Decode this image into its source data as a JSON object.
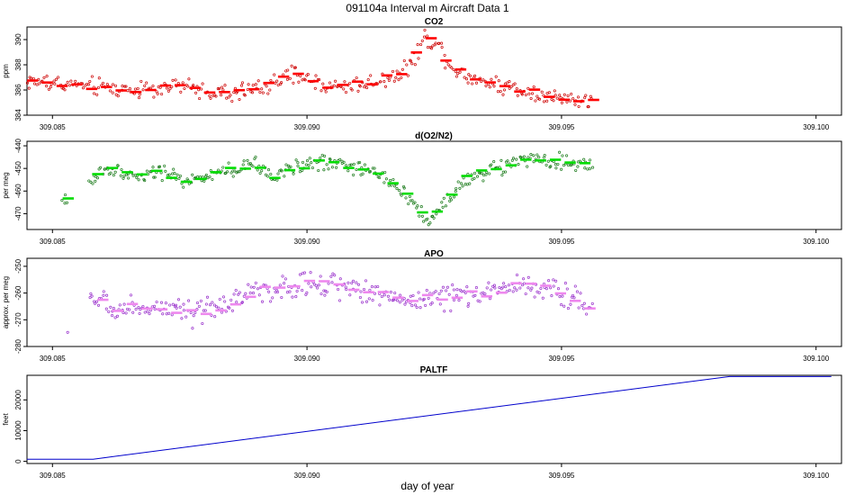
{
  "figure": {
    "title": "091104a   Interval m Aircraft Data 1",
    "xlabel": "day of year"
  },
  "chart_data": [
    {
      "type": "scatter",
      "title": "CO2",
      "ylabel": "ppm",
      "xlim": [
        309.0845,
        309.1005
      ],
      "ylim": [
        384,
        391
      ],
      "x_ticks": [
        "309.085",
        "309.090",
        "309.095",
        "309.100"
      ],
      "y_ticks": [
        "384",
        "386",
        "388",
        "390"
      ],
      "colors": {
        "points": "#cc0000",
        "means": "#ff0000"
      },
      "anchors": [
        [
          309.0845,
          386.7
        ],
        [
          309.0855,
          386.4
        ],
        [
          309.0865,
          386.0
        ],
        [
          309.0875,
          386.3
        ],
        [
          309.0885,
          385.6
        ],
        [
          309.0893,
          386.5
        ],
        [
          309.0898,
          387.2
        ],
        [
          309.0905,
          386.2
        ],
        [
          309.0913,
          386.6
        ],
        [
          309.0918,
          387.3
        ],
        [
          309.0921,
          388.3
        ],
        [
          309.0923,
          390.2
        ],
        [
          309.0926,
          389.6
        ],
        [
          309.0928,
          388.0
        ],
        [
          309.0932,
          387.0
        ],
        [
          309.094,
          386.2
        ],
        [
          309.0948,
          385.5
        ],
        [
          309.0956,
          385.0
        ]
      ],
      "scatter_spread": 0.7,
      "mean_spread": 0.25
    },
    {
      "type": "scatter",
      "title": "d(O2/N2)",
      "ylabel": "per meg",
      "xlim": [
        309.0845,
        309.1005
      ],
      "ylim": [
        -477,
        -438
      ],
      "x_ticks": [
        "309.085",
        "309.090",
        "309.095",
        "309.100"
      ],
      "y_ticks": [
        "-470",
        "-460",
        "-450",
        "-440"
      ],
      "colors": {
        "points": "#1a7a1a",
        "means": "#00dd00"
      },
      "anchors": [
        [
          309.0852,
          -466.0
        ],
        [
          309.086,
          -450.0
        ],
        [
          309.0866,
          -454.0
        ],
        [
          309.0872,
          -452.0
        ],
        [
          309.0878,
          -456.0
        ],
        [
          309.0885,
          -451.0
        ],
        [
          309.089,
          -448.0
        ],
        [
          309.0893,
          -454.0
        ],
        [
          309.0897,
          -450.0
        ],
        [
          309.0902,
          -447.0
        ],
        [
          309.0908,
          -448.5
        ],
        [
          309.0913,
          -452.0
        ],
        [
          309.0918,
          -458.0
        ],
        [
          309.0922,
          -468.0
        ],
        [
          309.0924,
          -474.0
        ],
        [
          309.0927,
          -465.0
        ],
        [
          309.0931,
          -455.0
        ],
        [
          309.0937,
          -450.0
        ],
        [
          309.0944,
          -446.0
        ],
        [
          309.095,
          -447.5
        ],
        [
          309.0956,
          -449.0
        ]
      ],
      "scatter_spread": 3.5,
      "mean_spread": 1.5
    },
    {
      "type": "scatter",
      "title": "APO",
      "ylabel": "approx. per meg",
      "xlim": [
        309.0845,
        309.1005
      ],
      "ylim": [
        -280,
        -247
      ],
      "x_ticks": [
        "309.085",
        "309.090",
        "309.095",
        "309.100"
      ],
      "y_ticks": [
        "-280",
        "-270",
        "-260",
        "-250"
      ],
      "colors": {
        "points": "#9a33cc",
        "means": "#ee88ee"
      },
      "anchors": [
        [
          309.0853,
          -276.0
        ],
        [
          309.0859,
          -262.0
        ],
        [
          309.0862,
          -266.0
        ],
        [
          309.0866,
          -265.0
        ],
        [
          309.0872,
          -266.0
        ],
        [
          309.0878,
          -268.0
        ],
        [
          309.0885,
          -264.0
        ],
        [
          309.089,
          -259.0
        ],
        [
          309.0897,
          -258.0
        ],
        [
          309.0903,
          -256.0
        ],
        [
          309.091,
          -259.0
        ],
        [
          309.0917,
          -261.0
        ],
        [
          309.0922,
          -263.0
        ],
        [
          309.0928,
          -261.0
        ],
        [
          309.0934,
          -260.0
        ],
        [
          309.0941,
          -257.0
        ],
        [
          309.0948,
          -259.0
        ],
        [
          309.0953,
          -262.0
        ],
        [
          309.0956,
          -265.0
        ]
      ],
      "scatter_spread": 4.5,
      "mean_spread": 1.8
    },
    {
      "type": "line",
      "title": "PALTF",
      "ylabel": "feet",
      "xlim": [
        309.0845,
        309.1005
      ],
      "ylim": [
        -700,
        28000
      ],
      "x_ticks": [
        "309.085",
        "309.090",
        "309.095",
        "309.100"
      ],
      "y_ticks": [
        "0",
        "10000",
        "20000"
      ],
      "colors": {
        "line": "#0000cc"
      },
      "x": [
        309.0845,
        309.0858,
        309.0983,
        309.1003
      ],
      "y": [
        700,
        700,
        27600,
        27600
      ]
    }
  ]
}
